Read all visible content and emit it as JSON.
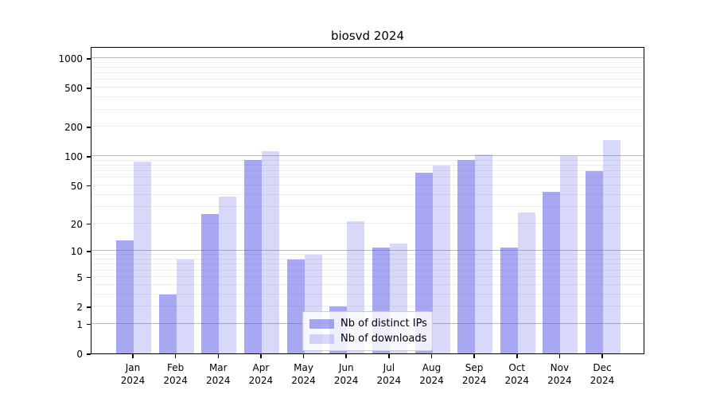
{
  "chart_data": {
    "type": "bar",
    "title": "biosvd 2024",
    "categories": [
      "Jan",
      "Feb",
      "Mar",
      "Apr",
      "May",
      "Jun",
      "Jul",
      "Aug",
      "Sep",
      "Oct",
      "Nov",
      "Dec"
    ],
    "year": "2024",
    "series": [
      {
        "name": "Nb of distinct IPs",
        "color": "#a8a8f0",
        "rgba": "rgba(85,85,230,0.51)",
        "values": [
          13,
          3,
          25,
          92,
          8,
          2,
          11,
          68,
          92,
          11,
          43,
          70
        ]
      },
      {
        "name": "Nb of downloads",
        "color": "#dcdcf8",
        "rgba": "rgba(85,85,230,0.23)",
        "values": [
          88,
          8,
          38,
          112,
          9,
          21,
          12,
          80,
          105,
          26,
          100,
          145
        ]
      }
    ],
    "yticks": [
      0,
      1,
      2,
      5,
      10,
      20,
      50,
      100,
      200,
      500,
      1000
    ],
    "yscale": "log10(v+1)",
    "ylim": [
      0,
      1324
    ],
    "grid": true,
    "legend_position": "inside-bottom-center"
  }
}
